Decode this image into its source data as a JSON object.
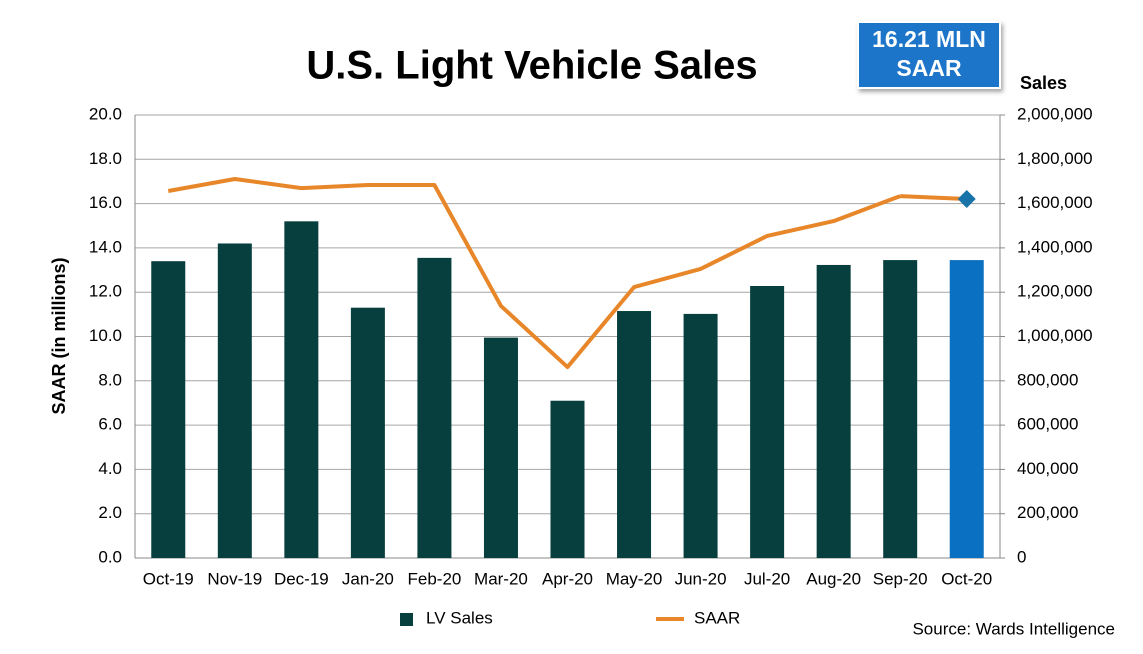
{
  "chart_data": {
    "type": "combo",
    "title": "U.S. Light Vehicle Sales",
    "annotation": [
      "16.21 MLN",
      "SAAR"
    ],
    "source": "Source: Wards Intelligence",
    "ylabel": "SAAR (in millions)",
    "y2label": "Sales",
    "categories": [
      "Oct-19",
      "Nov-19",
      "Dec-19",
      "Jan-20",
      "Feb-20",
      "Mar-20",
      "Apr-20",
      "May-20",
      "Jun-20",
      "Jul-20",
      "Aug-20",
      "Sep-20",
      "Oct-20"
    ],
    "series": [
      {
        "name": "LV Sales",
        "type": "bar",
        "axis": "y2",
        "color": "#063f3e",
        "highlight_color": "#0a70c2",
        "values": [
          1340000,
          1420000,
          1520000,
          1130000,
          1355000,
          995000,
          710000,
          1115000,
          1102000,
          1228000,
          1323000,
          1345000,
          1345000
        ]
      },
      {
        "name": "SAAR",
        "type": "line",
        "color": "#e8862a",
        "highlight_color": "#1874a8",
        "values": [
          16.57,
          17.11,
          16.7,
          16.84,
          16.84,
          11.38,
          8.62,
          12.23,
          13.05,
          14.54,
          15.21,
          16.34,
          16.21
        ]
      }
    ],
    "ylim": [
      0,
      20
    ],
    "yticks": [
      {
        "value": 0,
        "label": "0.0"
      },
      {
        "value": 2,
        "label": "2.0"
      },
      {
        "value": 4,
        "label": "4.0"
      },
      {
        "value": 6,
        "label": "6.0"
      },
      {
        "value": 8,
        "label": "8.0"
      },
      {
        "value": 10,
        "label": "10.0"
      },
      {
        "value": 12,
        "label": "12.0"
      },
      {
        "value": 14,
        "label": "14.0"
      },
      {
        "value": 16,
        "label": "16.0"
      },
      {
        "value": 18,
        "label": "18.0"
      },
      {
        "value": 20,
        "label": "20.0"
      }
    ],
    "y2lim": [
      0,
      2000000
    ],
    "y2ticks": [
      0,
      {
        "value": 200000,
        "label": "200,000"
      },
      {
        "value": 400000,
        "label": "400,000"
      },
      {
        "value": 600000,
        "label": "600,000"
      },
      {
        "value": 800000,
        "label": "800,000"
      },
      {
        "value": 1000000,
        "label": "1,000,000"
      },
      {
        "value": 1200000,
        "label": "1,200,000"
      },
      {
        "value": 1400000,
        "label": "1,400,000"
      },
      {
        "value": 1600000,
        "label": "1,600,000"
      },
      {
        "value": 1800000,
        "label": "1,800,000"
      },
      {
        "value": 2000000,
        "label": "2,000,000"
      }
    ],
    "grid": true
  }
}
